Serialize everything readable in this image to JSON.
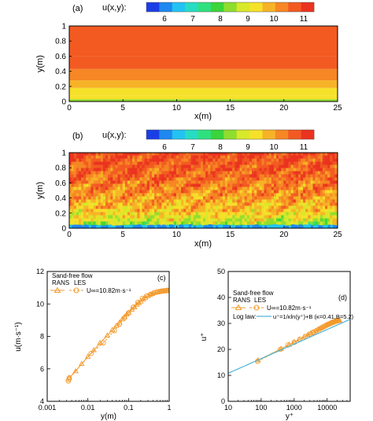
{
  "colors": {
    "colorbar": [
      "#1b3fe6",
      "#1e88f0",
      "#22c3f2",
      "#27dcc2",
      "#2fe07f",
      "#3bd43a",
      "#8fdd2e",
      "#d8e82a",
      "#f6e12a",
      "#f7b327",
      "#f68724",
      "#f25a22",
      "#ea3320"
    ],
    "field_bands": [
      "#ea3a20",
      "#f56f22",
      "#f79a25",
      "#f7b42a",
      "#f4cc2c",
      "#f3dd2d"
    ],
    "series_orange": "#f39a2c",
    "log_law_line": "#4fb3d9"
  },
  "chart_data": [
    {
      "panel": "(a)",
      "type": "heatmap",
      "colorbar_label": "u(x,y):",
      "colorbar_ticks": [
        "6",
        "7",
        "8",
        "9",
        "10",
        "11"
      ],
      "xlabel": "x(m)",
      "ylabel": "y(m)",
      "xlim": [
        0,
        25
      ],
      "ylim": [
        0,
        1
      ],
      "xticks": [
        "0",
        "5",
        "10",
        "15",
        "20",
        "25"
      ],
      "yticks": [
        "0",
        "0.2",
        "0.4",
        "0.6",
        "0.8",
        "1"
      ],
      "bands": [
        {
          "y0": 0.0,
          "y1": 0.03,
          "u": 8.5
        },
        {
          "y0": 0.03,
          "y1": 0.08,
          "u": 9.2
        },
        {
          "y0": 0.08,
          "y1": 0.18,
          "u": 9.6
        },
        {
          "y0": 0.18,
          "y1": 0.28,
          "u": 10.0
        },
        {
          "y0": 0.28,
          "y1": 0.43,
          "u": 10.3
        },
        {
          "y0": 0.43,
          "y1": 0.6,
          "u": 10.6
        },
        {
          "y0": 0.6,
          "y1": 1.0,
          "u": 10.9
        }
      ]
    },
    {
      "panel": "(b)",
      "type": "heatmap",
      "colorbar_label": "u(x,y):",
      "colorbar_ticks": [
        "6",
        "7",
        "8",
        "9",
        "10",
        "11"
      ],
      "xlabel": "x(m)",
      "ylabel": "y(m)",
      "xlim": [
        0,
        25
      ],
      "ylim": [
        0,
        1
      ],
      "xticks": [
        "0",
        "5",
        "10",
        "15",
        "20",
        "25"
      ],
      "yticks": [
        "0",
        "0.2",
        "0.4",
        "0.6",
        "0.8",
        "1"
      ]
    },
    {
      "panel": "(c)",
      "type": "line",
      "xscale": "log",
      "xlabel": "y(m)",
      "ylabel": "u(m·s⁻¹)",
      "xlim": [
        0.001,
        1
      ],
      "ylim": [
        4,
        12
      ],
      "xticks": [
        "0.001",
        "0.01",
        "0.1",
        "1"
      ],
      "yticks": [
        "4",
        "6",
        "8",
        "10",
        "12"
      ],
      "legend": {
        "title": "Sand-free flow",
        "cols": [
          "RANS",
          "LES"
        ],
        "label": "U∞=10.82m·s⁻¹"
      },
      "series": [
        {
          "name": "RANS",
          "marker": "triangle",
          "x": [
            0.0035,
            0.005,
            0.007,
            0.01,
            0.014,
            0.02,
            0.03,
            0.04,
            0.05,
            0.06,
            0.07,
            0.08,
            0.09,
            0.1,
            0.12,
            0.14,
            0.16,
            0.18,
            0.2,
            0.23,
            0.26,
            0.3,
            0.34,
            0.38,
            0.43,
            0.48,
            0.54,
            0.6,
            0.66,
            0.72,
            0.78,
            0.84,
            0.9,
            0.95
          ],
          "y": [
            5.45,
            5.85,
            6.3,
            6.75,
            7.15,
            7.6,
            8.05,
            8.4,
            8.65,
            8.85,
            9.05,
            9.2,
            9.35,
            9.45,
            9.65,
            9.8,
            9.95,
            10.05,
            10.15,
            10.28,
            10.38,
            10.48,
            10.56,
            10.62,
            10.68,
            10.72,
            10.75,
            10.77,
            10.79,
            10.8,
            10.81,
            10.81,
            10.82,
            10.82
          ]
        },
        {
          "name": "LES",
          "marker": "circle",
          "x": [
            0.0033,
            0.0034,
            0.0035,
            0.012,
            0.024,
            0.045,
            0.06,
            0.08,
            0.1,
            0.13,
            0.17,
            0.22,
            0.28,
            0.35,
            0.42,
            0.5,
            0.58,
            0.66,
            0.74,
            0.82,
            0.9
          ],
          "y": [
            5.25,
            5.35,
            5.45,
            6.95,
            7.6,
            8.35,
            8.75,
            9.15,
            9.45,
            9.8,
            10.1,
            10.35,
            10.5,
            10.6,
            10.68,
            10.73,
            10.76,
            10.78,
            10.8,
            10.81,
            10.82
          ]
        }
      ]
    },
    {
      "panel": "(d)",
      "type": "line",
      "xscale": "log",
      "xlabel": "y⁺",
      "ylabel": "u⁺",
      "xlim": [
        10,
        50000
      ],
      "ylim": [
        0,
        50
      ],
      "xticks": [
        "10",
        "100",
        "1000",
        "10000"
      ],
      "yticks": [
        "0",
        "10",
        "20",
        "30",
        "40",
        "50"
      ],
      "legend": {
        "title": "Sand-free flow",
        "cols": [
          "RANS",
          "LES"
        ],
        "label": "U∞=10.82m·s⁻¹",
        "line_label": "Log law:",
        "line_formula": "u⁺=1/κln(y⁺)+B (κ=0.41,B=5.2)"
      },
      "series": [
        {
          "name": "RANS",
          "marker": "triangle",
          "x": [
            80,
            400,
            700,
            1000,
            1400,
            2000,
            2600,
            3200,
            3800,
            4500,
            5200,
            6000,
            6800,
            7600,
            8500,
            9500,
            10500,
            11500,
            12500,
            13500,
            14500,
            15500,
            16500,
            17500,
            18500,
            19500,
            20500,
            21500,
            22500,
            23500
          ],
          "y": [
            15.8,
            20.2,
            21.8,
            22.8,
            23.8,
            24.8,
            25.6,
            26.2,
            26.7,
            27.2,
            27.6,
            28.0,
            28.4,
            28.7,
            29.0,
            29.3,
            29.55,
            29.8,
            30.0,
            30.2,
            30.35,
            30.5,
            30.62,
            30.74,
            30.84,
            30.92,
            31.0,
            31.05,
            31.1,
            31.15
          ]
        },
        {
          "name": "LES",
          "marker": "circle",
          "x": [
            78,
            380,
            650,
            1000,
            1500,
            2200,
            3000,
            3800,
            4700,
            5700,
            6800,
            8000,
            9300,
            10800,
            12300,
            14000,
            16000,
            18000,
            20000,
            22500
          ],
          "y": [
            15.4,
            20.0,
            21.7,
            22.7,
            23.9,
            25.0,
            25.9,
            26.6,
            27.2,
            27.8,
            28.3,
            28.8,
            29.3,
            29.7,
            30.0,
            30.35,
            30.6,
            30.85,
            31.0,
            31.1
          ]
        },
        {
          "name": "Log law",
          "kappa": 0.41,
          "B": 5.2,
          "x": [
            10,
            50000
          ]
        }
      ]
    }
  ]
}
